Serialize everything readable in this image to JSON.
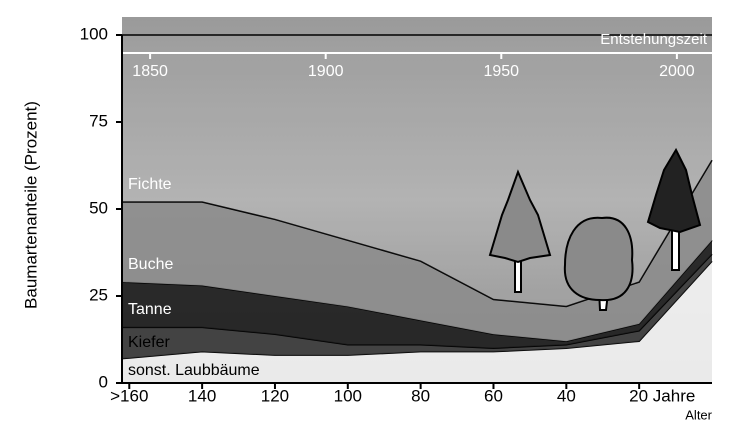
{
  "chart_data": {
    "type": "stacked_area",
    "y_label": "Baumartenanteile (Prozent)",
    "x_label": "Alter",
    "x2_label": "Entstehungszeit",
    "x": [
      162,
      140,
      120,
      100,
      80,
      60,
      40,
      20,
      0
    ],
    "xlim": [
      162,
      0
    ],
    "xticks": [
      {
        "value": 160,
        "label": ">160"
      },
      140,
      120,
      100,
      80,
      60,
      40,
      {
        "value": 20,
        "label": "20 Jahre"
      }
    ],
    "x2lim": [
      1842,
      2010
    ],
    "x2ticks": [
      1850,
      1900,
      1950,
      2000
    ],
    "ylim": [
      0,
      100
    ],
    "yticks": [
      0,
      25,
      50,
      75,
      100
    ],
    "series": [
      {
        "name": "sonst. Laubbäume",
        "color": "#f4f4f4",
        "values": [
          7,
          9,
          8,
          8,
          9,
          9,
          10,
          12,
          35
        ]
      },
      {
        "name": "Kiefer",
        "color": "#3a3a3a",
        "values": [
          9,
          7,
          6,
          3,
          2,
          1,
          1,
          3,
          2
        ]
      },
      {
        "name": "Tanne",
        "color": "#1c1c1c",
        "values": [
          13,
          12,
          11,
          11,
          7,
          4,
          1,
          2,
          4
        ]
      },
      {
        "name": "Buche",
        "color": "#8c8c8c",
        "values": [
          23,
          24,
          22,
          19,
          17,
          10,
          10,
          12,
          23
        ]
      },
      {
        "name": "Fichte",
        "color": "#a6a6a6",
        "values": [
          48,
          48,
          53,
          59,
          65,
          76,
          78,
          71,
          36
        ]
      }
    ]
  }
}
